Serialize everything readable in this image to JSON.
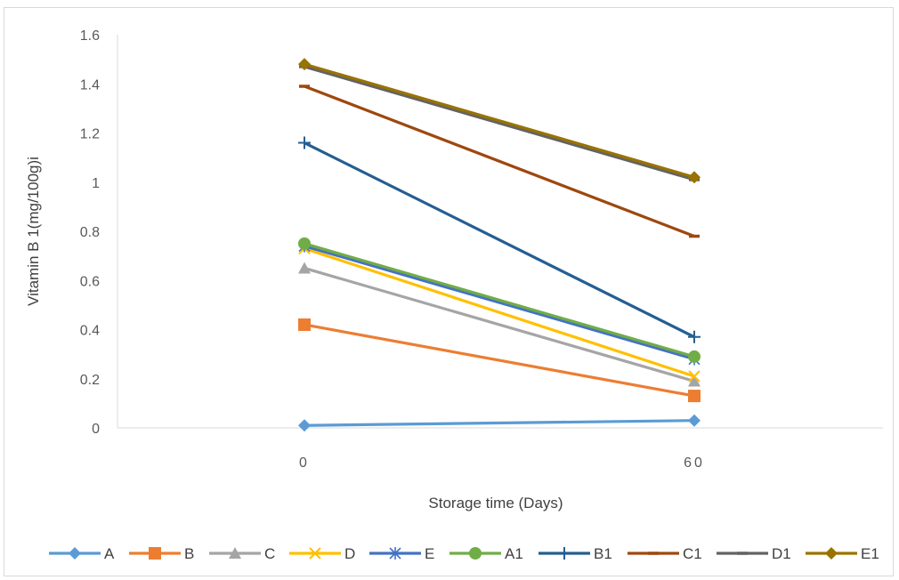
{
  "chart_data": {
    "type": "line",
    "title": "",
    "xlabel": "Storage time (Days)",
    "ylabel": "Vitamin B 1(mg/100g)i",
    "categories": [
      "0",
      "60"
    ],
    "ylim": [
      0,
      1.6
    ],
    "yticks": [
      "0",
      "0.2",
      "0.4",
      "0.6",
      "0.8",
      "1",
      "1.2",
      "1.4",
      "1.6"
    ],
    "grid": false,
    "legend_position": "bottom",
    "series": [
      {
        "name": "A",
        "values": [
          0.01,
          0.03
        ],
        "color": "#5b9bd5",
        "marker": "diamond"
      },
      {
        "name": "B",
        "values": [
          0.42,
          0.13
        ],
        "color": "#ed7d31",
        "marker": "square"
      },
      {
        "name": "C",
        "values": [
          0.65,
          0.19
        ],
        "color": "#a5a5a5",
        "marker": "triangle"
      },
      {
        "name": "D",
        "values": [
          0.73,
          0.21
        ],
        "color": "#ffc000",
        "marker": "x"
      },
      {
        "name": "E",
        "values": [
          0.74,
          0.28
        ],
        "color": "#4472c4",
        "marker": "asterisk"
      },
      {
        "name": "A1",
        "values": [
          0.75,
          0.29
        ],
        "color": "#70ad47",
        "marker": "circle"
      },
      {
        "name": "B1",
        "values": [
          1.16,
          0.37
        ],
        "color": "#255e91",
        "marker": "plus"
      },
      {
        "name": "C1",
        "values": [
          1.39,
          0.78
        ],
        "color": "#9e480e",
        "marker": "dash"
      },
      {
        "name": "D1",
        "values": [
          1.47,
          1.01
        ],
        "color": "#636363",
        "marker": "dash"
      },
      {
        "name": "E1",
        "values": [
          1.48,
          1.02
        ],
        "color": "#997300",
        "marker": "diamond"
      }
    ]
  }
}
